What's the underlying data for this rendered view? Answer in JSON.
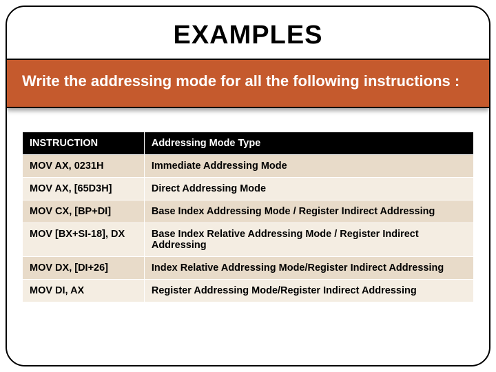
{
  "slide": {
    "title": "EXAMPLES",
    "subtitle": "Write the addressing mode for all the following instructions :",
    "colors": {
      "band_bg": "#c55a2d",
      "band_text": "#ffffff",
      "header_bg": "#000000",
      "header_text": "#ffffff",
      "row_odd_bg": "#e8dbc9",
      "row_even_bg": "#f4ede2",
      "frame_border": "#000000"
    },
    "table": {
      "type": "table",
      "columns": [
        "INSTRUCTION",
        "Addressing Mode Type"
      ],
      "column_widths": [
        "27%",
        "73%"
      ],
      "header_fontsize": 14.5,
      "cell_fontsize": 14.5,
      "cell_font_weight": "bold",
      "rows": [
        [
          "MOV AX, 0231H",
          "Immediate Addressing Mode"
        ],
        [
          "MOV AX, [65D3H]",
          "Direct Addressing Mode"
        ],
        [
          "MOV CX, [BP+DI]",
          "Base Index Addressing Mode / Register Indirect Addressing"
        ],
        [
          "MOV [BX+SI-18], DX",
          "Base Index Relative Addressing Mode / Register Indirect Addressing"
        ],
        [
          "MOV DX, [DI+26]",
          "Index Relative Addressing Mode/Register Indirect Addressing"
        ],
        [
          "MOV DI, AX",
          "Register Addressing Mode/Register Indirect Addressing"
        ]
      ]
    }
  }
}
